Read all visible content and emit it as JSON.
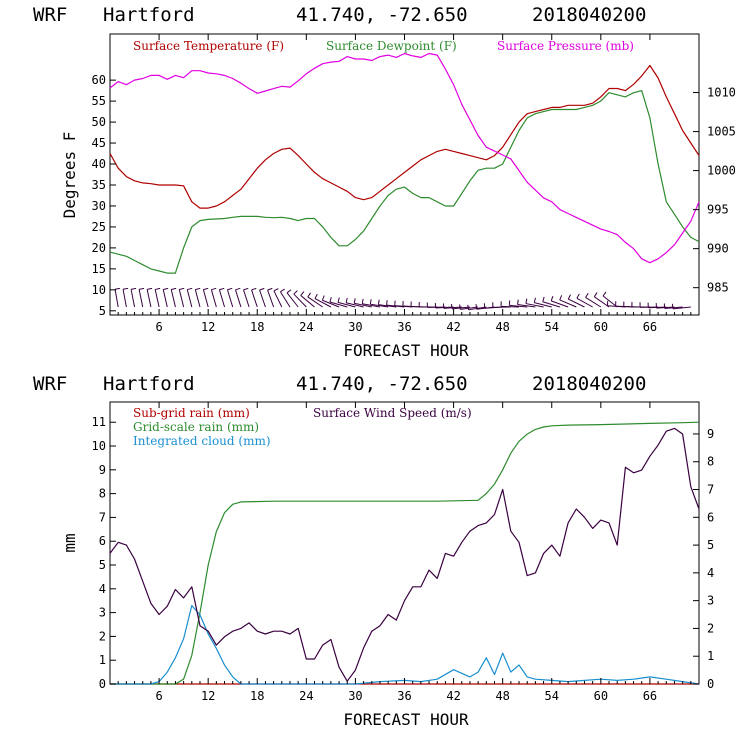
{
  "colors": {
    "temperature": "#b00000",
    "dewpoint": "#2e8b2e",
    "pressure": "#e000e0",
    "subgrid": "#b00000",
    "gridscale": "#2e8b2e",
    "cloud": "#1a8fd0",
    "wind": "#3a0040",
    "barbs": "#3a0040"
  },
  "chart_data": [
    {
      "type": "line",
      "header": {
        "model": "WRF",
        "station": "Hartford",
        "coords": "41.740, -72.650",
        "init": "2018040200"
      },
      "title": "",
      "xlabel": "FORECAST HOUR",
      "ylabel": "Degrees F",
      "xlim": [
        0,
        72
      ],
      "ylim": [
        4,
        71
      ],
      "y2lim": [
        981.5,
        1017.5
      ],
      "x_ticks": [
        "6",
        "12",
        "18",
        "24",
        "30",
        "36",
        "42",
        "48",
        "54",
        "60",
        "66"
      ],
      "x_tick_values": [
        6,
        12,
        18,
        24,
        30,
        36,
        42,
        48,
        54,
        60,
        66
      ],
      "y_ticks": [
        "5",
        "10",
        "15",
        "20",
        "25",
        "30",
        "35",
        "40",
        "45",
        "50",
        "55",
        "60"
      ],
      "y_tick_values": [
        5,
        10,
        15,
        20,
        25,
        30,
        35,
        40,
        45,
        50,
        55,
        60
      ],
      "y2_ticks": [
        "985",
        "990",
        "995",
        "1000",
        "1005",
        "1010"
      ],
      "y2_tick_values": [
        985,
        990,
        995,
        1000,
        1005,
        1010
      ],
      "legend": [
        "Surface Temperature (F)",
        "Surface Dewpoint (F)",
        "Surface Pressure (mb)"
      ],
      "series": [
        {
          "name": "Surface Temperature (F)",
          "axis": "left",
          "x": [
            0,
            1,
            2,
            3,
            4,
            5,
            6,
            7,
            8,
            9,
            10,
            11,
            12,
            13,
            14,
            15,
            16,
            17,
            18,
            19,
            20,
            21,
            22,
            23,
            24,
            25,
            26,
            27,
            28,
            29,
            30,
            31,
            32,
            33,
            34,
            35,
            36,
            37,
            38,
            39,
            40,
            41,
            42,
            43,
            44,
            45,
            46,
            47,
            48,
            49,
            50,
            51,
            52,
            53,
            54,
            55,
            56,
            57,
            58,
            59,
            60,
            61,
            62,
            63,
            64,
            65,
            66,
            67,
            68,
            69,
            70,
            71,
            72
          ],
          "values": [
            42.5,
            39,
            37,
            36,
            35.5,
            35.3,
            35,
            35,
            35,
            34.8,
            31,
            29.5,
            29.5,
            30,
            31,
            32.5,
            34,
            36.5,
            39,
            41,
            42.5,
            43.5,
            43.8,
            42,
            40,
            38,
            36.5,
            35.5,
            34.5,
            33.5,
            32,
            31.5,
            32,
            33.5,
            35,
            36.5,
            38,
            39.5,
            41,
            42,
            43,
            43.5,
            43,
            42.5,
            42,
            41.5,
            41,
            42,
            44,
            47,
            50,
            52,
            52.5,
            53,
            53.5,
            53.5,
            54,
            54,
            54,
            54.5,
            56,
            58,
            58,
            57.5,
            59,
            61,
            63.5,
            60.5,
            56,
            52,
            48,
            45,
            42
          ]
        },
        {
          "name": "Surface Dewpoint (F)",
          "axis": "left",
          "x": [
            0,
            1,
            2,
            3,
            4,
            5,
            6,
            7,
            8,
            9,
            10,
            11,
            12,
            13,
            14,
            15,
            16,
            17,
            18,
            19,
            20,
            21,
            22,
            23,
            24,
            25,
            26,
            27,
            28,
            29,
            30,
            31,
            32,
            33,
            34,
            35,
            36,
            37,
            38,
            39,
            40,
            41,
            42,
            43,
            44,
            45,
            46,
            47,
            48,
            49,
            50,
            51,
            52,
            53,
            54,
            55,
            56,
            57,
            58,
            59,
            60,
            61,
            62,
            63,
            64,
            65,
            66,
            67,
            68,
            69,
            70,
            71,
            72
          ],
          "values": [
            19,
            18.5,
            18,
            17,
            16,
            15,
            14.5,
            14,
            14,
            20,
            25,
            26.5,
            26.8,
            26.9,
            27,
            27.3,
            27.5,
            27.5,
            27.5,
            27.3,
            27.2,
            27.3,
            27,
            26.5,
            27,
            27,
            25,
            22.5,
            20.5,
            20.5,
            22,
            24,
            27,
            30,
            32.5,
            34,
            34.5,
            33,
            32,
            32,
            31,
            30,
            30,
            33,
            36,
            38.5,
            39,
            39,
            40,
            44,
            48,
            51,
            52,
            52.5,
            53,
            53,
            53,
            53,
            53.5,
            54,
            55,
            57,
            56.5,
            56,
            57,
            57.5,
            51,
            40,
            31,
            28,
            25,
            22.5,
            21.5
          ]
        },
        {
          "name": "Surface Pressure (mb)",
          "axis": "right",
          "x": [
            0,
            1,
            2,
            3,
            4,
            5,
            6,
            7,
            8,
            9,
            10,
            11,
            12,
            13,
            14,
            15,
            16,
            17,
            18,
            19,
            20,
            21,
            22,
            23,
            24,
            25,
            26,
            27,
            28,
            29,
            30,
            31,
            32,
            33,
            34,
            35,
            36,
            37,
            38,
            39,
            40,
            41,
            42,
            43,
            44,
            45,
            46,
            47,
            48,
            49,
            50,
            51,
            52,
            53,
            54,
            55,
            56,
            57,
            58,
            59,
            60,
            61,
            62,
            63,
            64,
            65,
            66,
            67,
            68,
            69,
            70,
            71,
            72
          ],
          "values": [
            1010.6,
            1011.4,
            1011,
            1011.6,
            1011.8,
            1012.2,
            1012.2,
            1011.7,
            1012.2,
            1011.9,
            1012.8,
            1012.8,
            1012.5,
            1012.4,
            1012.2,
            1011.8,
            1011.2,
            1010.5,
            1009.9,
            1010.2,
            1010.5,
            1010.8,
            1010.7,
            1011.5,
            1012.4,
            1013.1,
            1013.7,
            1013.9,
            1014,
            1014.6,
            1014.3,
            1014.3,
            1014.1,
            1014.6,
            1014.8,
            1014.5,
            1015,
            1014.7,
            1014.5,
            1015,
            1014.8,
            1013,
            1011,
            1008.5,
            1006.5,
            1004.5,
            1003,
            1002.5,
            1002,
            1001.5,
            1000,
            998.5,
            997.5,
            996.5,
            996,
            995,
            994.5,
            994,
            993.5,
            993,
            992.5,
            992.2,
            991.8,
            990.8,
            990,
            988.7,
            988.2,
            988.7,
            989.5,
            990.5,
            992,
            993.5,
            996
          ]
        }
      ],
      "wind_barbs": "row of wind barbs along the bottom of the upper panel, hourly 0-72"
    },
    {
      "type": "line",
      "header": {
        "model": "WRF",
        "station": "Hartford",
        "coords": "41.740, -72.650",
        "init": "2018040200"
      },
      "title": "",
      "xlabel": "FORECAST HOUR",
      "ylabel": "mm",
      "xlim": [
        0,
        72
      ],
      "ylim": [
        0,
        11.85
      ],
      "y2lim": [
        0,
        10.15
      ],
      "x_ticks": [
        "6",
        "12",
        "18",
        "24",
        "30",
        "36",
        "42",
        "48",
        "54",
        "60",
        "66"
      ],
      "x_tick_values": [
        6,
        12,
        18,
        24,
        30,
        36,
        42,
        48,
        54,
        60,
        66
      ],
      "y_ticks": [
        "0",
        "1",
        "2",
        "3",
        "4",
        "5",
        "6",
        "7",
        "8",
        "9",
        "10",
        "11"
      ],
      "y_tick_values": [
        0,
        1,
        2,
        3,
        4,
        5,
        6,
        7,
        8,
        9,
        10,
        11
      ],
      "y2_ticks": [
        "0",
        "1",
        "2",
        "3",
        "4",
        "5",
        "6",
        "7",
        "8",
        "9"
      ],
      "y2_tick_values": [
        0,
        1,
        2,
        3,
        4,
        5,
        6,
        7,
        8,
        9
      ],
      "legend": [
        "Sub-grid rain (mm)",
        "Grid-scale rain (mm)",
        "Integrated cloud (mm)",
        "Surface Wind Speed (m/s)"
      ],
      "series": [
        {
          "name": "Sub-grid rain (mm)",
          "axis": "left",
          "x": [
            0,
            72
          ],
          "values": [
            0,
            0
          ]
        },
        {
          "name": "Grid-scale rain (mm)",
          "axis": "left",
          "x": [
            0,
            8,
            9,
            10,
            11,
            12,
            13,
            14,
            15,
            16,
            20,
            30,
            40,
            45,
            46,
            47,
            48,
            49,
            50,
            51,
            52,
            53,
            54,
            56,
            60,
            66,
            70,
            72
          ],
          "values": [
            0,
            0,
            0.2,
            1.2,
            3,
            5,
            6.4,
            7.2,
            7.55,
            7.65,
            7.68,
            7.68,
            7.68,
            7.72,
            8,
            8.4,
            9,
            9.7,
            10.2,
            10.5,
            10.7,
            10.8,
            10.85,
            10.88,
            10.9,
            10.95,
            10.98,
            11
          ]
        },
        {
          "name": "Integrated cloud (mm)",
          "axis": "left",
          "x": [
            0,
            5,
            6,
            7,
            8,
            9,
            10,
            11,
            12,
            13,
            14,
            15,
            16,
            18,
            25,
            30,
            33,
            36,
            38,
            40,
            42,
            44,
            45,
            46,
            47,
            48,
            49,
            50,
            51,
            52,
            54,
            56,
            58,
            60,
            62,
            64,
            66,
            68,
            70,
            72
          ],
          "values": [
            0,
            0,
            0.1,
            0.5,
            1.1,
            1.9,
            3.3,
            2.9,
            2.1,
            1.5,
            0.8,
            0.3,
            0,
            0,
            0,
            0,
            0.1,
            0.15,
            0.1,
            0.2,
            0.6,
            0.3,
            0.5,
            1.1,
            0.4,
            1.3,
            0.5,
            0.8,
            0.3,
            0.2,
            0.15,
            0.1,
            0.15,
            0.2,
            0.15,
            0.2,
            0.3,
            0.2,
            0.1,
            0
          ]
        },
        {
          "name": "Surface Wind Speed (m/s)",
          "axis": "right",
          "x": [
            0,
            1,
            2,
            3,
            4,
            5,
            6,
            7,
            8,
            9,
            10,
            11,
            12,
            13,
            14,
            15,
            16,
            17,
            18,
            19,
            20,
            21,
            22,
            23,
            24,
            25,
            26,
            27,
            28,
            29,
            30,
            31,
            32,
            33,
            34,
            35,
            36,
            37,
            38,
            39,
            40,
            41,
            42,
            43,
            44,
            45,
            46,
            47,
            48,
            49,
            50,
            51,
            52,
            53,
            54,
            55,
            56,
            57,
            58,
            59,
            60,
            61,
            62,
            63,
            64,
            65,
            66,
            67,
            68,
            69,
            70,
            71,
            72
          ],
          "values": [
            4.7,
            5.1,
            5.0,
            4.5,
            3.7,
            2.9,
            2.5,
            2.8,
            3.4,
            3.1,
            3.5,
            2.1,
            1.9,
            1.4,
            1.7,
            1.9,
            2.0,
            2.2,
            1.9,
            1.8,
            1.9,
            1.9,
            1.8,
            2.0,
            0.9,
            0.9,
            1.4,
            1.6,
            0.6,
            0.1,
            0.5,
            1.3,
            1.9,
            2.1,
            2.5,
            2.3,
            3.0,
            3.5,
            3.5,
            4.1,
            3.8,
            4.7,
            4.6,
            5.1,
            5.5,
            5.7,
            5.8,
            6.1,
            7.0,
            5.5,
            5.1,
            3.9,
            4.0,
            4.7,
            5.0,
            4.6,
            5.8,
            6.3,
            6.0,
            5.6,
            5.9,
            5.8,
            5.0,
            7.8,
            7.6,
            7.7,
            8.2,
            8.6,
            9.1,
            9.2,
            9.0,
            7.1,
            6.3
          ]
        }
      ]
    }
  ]
}
